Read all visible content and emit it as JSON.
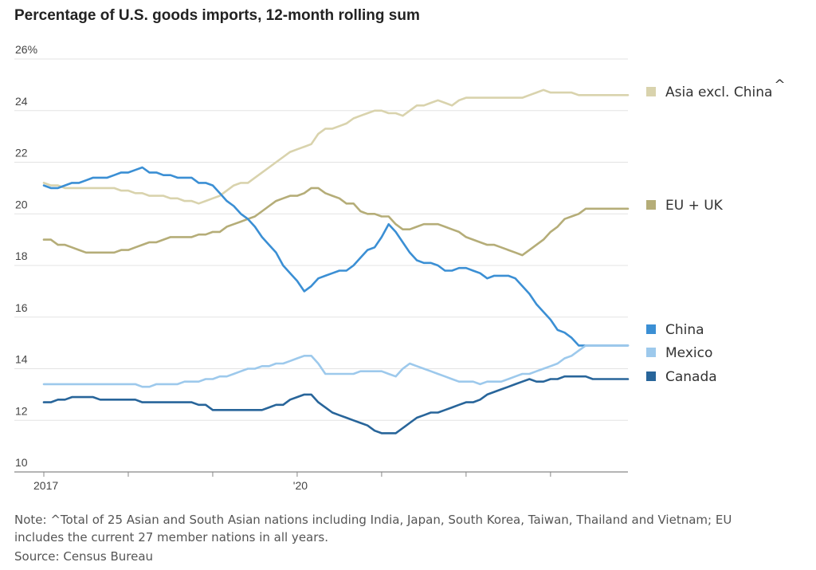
{
  "chart_data": {
    "type": "line",
    "title": "Percentage of U.S. goods imports, 12-month rolling sum",
    "y_ticks": [
      "26%",
      "24",
      "22",
      "20",
      "18",
      "16",
      "14",
      "12",
      "10"
    ],
    "x_tick_labels": [
      "2017",
      "'20"
    ],
    "ylim": [
      10,
      26
    ],
    "xlim": [
      "2017-01",
      "2023-12"
    ],
    "grid": true,
    "legend_position": "right",
    "x": [
      "2017-01",
      "2017-02",
      "2017-03",
      "2017-04",
      "2017-05",
      "2017-06",
      "2017-07",
      "2017-08",
      "2017-09",
      "2017-10",
      "2017-11",
      "2017-12",
      "2018-01",
      "2018-02",
      "2018-03",
      "2018-04",
      "2018-05",
      "2018-06",
      "2018-07",
      "2018-08",
      "2018-09",
      "2018-10",
      "2018-11",
      "2018-12",
      "2019-01",
      "2019-02",
      "2019-03",
      "2019-04",
      "2019-05",
      "2019-06",
      "2019-07",
      "2019-08",
      "2019-09",
      "2019-10",
      "2019-11",
      "2019-12",
      "2020-01",
      "2020-02",
      "2020-03",
      "2020-04",
      "2020-05",
      "2020-06",
      "2020-07",
      "2020-08",
      "2020-09",
      "2020-10",
      "2020-11",
      "2020-12",
      "2021-01",
      "2021-02",
      "2021-03",
      "2021-04",
      "2021-05",
      "2021-06",
      "2021-07",
      "2021-08",
      "2021-09",
      "2021-10",
      "2021-11",
      "2021-12",
      "2022-01",
      "2022-02",
      "2022-03",
      "2022-04",
      "2022-05",
      "2022-06",
      "2022-07",
      "2022-08",
      "2022-09",
      "2022-10",
      "2022-11",
      "2022-12",
      "2023-01",
      "2023-02",
      "2023-03",
      "2023-04",
      "2023-05",
      "2023-06",
      "2023-07",
      "2023-08",
      "2023-09",
      "2023-10",
      "2023-11",
      "2023-12"
    ],
    "series": [
      {
        "name": "Asia excl. China",
        "color": "#d9d3ad",
        "values": [
          21.2,
          21.1,
          21.1,
          21.0,
          21.0,
          21.0,
          21.0,
          21.0,
          21.0,
          21.0,
          21.0,
          20.9,
          20.9,
          20.8,
          20.8,
          20.7,
          20.7,
          20.7,
          20.6,
          20.6,
          20.5,
          20.5,
          20.4,
          20.5,
          20.6,
          20.7,
          20.9,
          21.1,
          21.2,
          21.2,
          21.4,
          21.6,
          21.8,
          22.0,
          22.2,
          22.4,
          22.5,
          22.6,
          22.7,
          23.1,
          23.3,
          23.3,
          23.4,
          23.5,
          23.7,
          23.8,
          23.9,
          24.0,
          24.0,
          23.9,
          23.9,
          23.8,
          24.0,
          24.2,
          24.2,
          24.3,
          24.4,
          24.3,
          24.2,
          24.4,
          24.5,
          24.5,
          24.5,
          24.5,
          24.5,
          24.5,
          24.5,
          24.5,
          24.5,
          24.6,
          24.7,
          24.8,
          24.7,
          24.7,
          24.7,
          24.7,
          24.6,
          24.6,
          24.6,
          24.6,
          24.6,
          24.6,
          24.6,
          24.6
        ]
      },
      {
        "name": "EU + UK",
        "color": "#b5ad78",
        "values": [
          19.0,
          19.0,
          18.8,
          18.8,
          18.7,
          18.6,
          18.5,
          18.5,
          18.5,
          18.5,
          18.5,
          18.6,
          18.6,
          18.7,
          18.8,
          18.9,
          18.9,
          19.0,
          19.1,
          19.1,
          19.1,
          19.1,
          19.2,
          19.2,
          19.3,
          19.3,
          19.5,
          19.6,
          19.7,
          19.8,
          19.9,
          20.1,
          20.3,
          20.5,
          20.6,
          20.7,
          20.7,
          20.8,
          21.0,
          21.0,
          20.8,
          20.7,
          20.6,
          20.4,
          20.4,
          20.1,
          20.0,
          20.0,
          19.9,
          19.9,
          19.6,
          19.4,
          19.4,
          19.5,
          19.6,
          19.6,
          19.6,
          19.5,
          19.4,
          19.3,
          19.1,
          19.0,
          18.9,
          18.8,
          18.8,
          18.7,
          18.6,
          18.5,
          18.4,
          18.6,
          18.8,
          19.0,
          19.3,
          19.5,
          19.8,
          19.9,
          20.0,
          20.2,
          20.2,
          20.2,
          20.2,
          20.2,
          20.2,
          20.2
        ]
      },
      {
        "name": "China",
        "color": "#3b8fd4",
        "values": [
          21.1,
          21.0,
          21.0,
          21.1,
          21.2,
          21.2,
          21.3,
          21.4,
          21.4,
          21.4,
          21.5,
          21.6,
          21.6,
          21.7,
          21.8,
          21.6,
          21.6,
          21.5,
          21.5,
          21.4,
          21.4,
          21.4,
          21.2,
          21.2,
          21.1,
          20.8,
          20.5,
          20.3,
          20.0,
          19.8,
          19.5,
          19.1,
          18.8,
          18.5,
          18.0,
          17.7,
          17.4,
          17.0,
          17.2,
          17.5,
          17.6,
          17.7,
          17.8,
          17.8,
          18.0,
          18.3,
          18.6,
          18.7,
          19.1,
          19.6,
          19.3,
          18.9,
          18.5,
          18.2,
          18.1,
          18.1,
          18.0,
          17.8,
          17.8,
          17.9,
          17.9,
          17.8,
          17.7,
          17.5,
          17.6,
          17.6,
          17.6,
          17.5,
          17.2,
          16.9,
          16.5,
          16.2,
          15.9,
          15.5,
          15.4,
          15.2,
          14.9,
          14.9,
          14.9,
          14.9,
          14.9,
          14.9,
          14.9,
          14.9
        ]
      },
      {
        "name": "Mexico",
        "color": "#9dc9ec",
        "values": [
          13.4,
          13.4,
          13.4,
          13.4,
          13.4,
          13.4,
          13.4,
          13.4,
          13.4,
          13.4,
          13.4,
          13.4,
          13.4,
          13.4,
          13.3,
          13.3,
          13.4,
          13.4,
          13.4,
          13.4,
          13.5,
          13.5,
          13.5,
          13.6,
          13.6,
          13.7,
          13.7,
          13.8,
          13.9,
          14.0,
          14.0,
          14.1,
          14.1,
          14.2,
          14.2,
          14.3,
          14.4,
          14.5,
          14.5,
          14.2,
          13.8,
          13.8,
          13.8,
          13.8,
          13.8,
          13.9,
          13.9,
          13.9,
          13.9,
          13.8,
          13.7,
          14.0,
          14.2,
          14.1,
          14.0,
          13.9,
          13.8,
          13.7,
          13.6,
          13.5,
          13.5,
          13.5,
          13.4,
          13.5,
          13.5,
          13.5,
          13.6,
          13.7,
          13.8,
          13.8,
          13.9,
          14.0,
          14.1,
          14.2,
          14.4,
          14.5,
          14.7,
          14.9,
          14.9,
          14.9,
          14.9,
          14.9,
          14.9,
          14.9
        ]
      },
      {
        "name": "Canada",
        "color": "#28659a",
        "values": [
          12.7,
          12.7,
          12.8,
          12.8,
          12.9,
          12.9,
          12.9,
          12.9,
          12.8,
          12.8,
          12.8,
          12.8,
          12.8,
          12.8,
          12.7,
          12.7,
          12.7,
          12.7,
          12.7,
          12.7,
          12.7,
          12.7,
          12.6,
          12.6,
          12.4,
          12.4,
          12.4,
          12.4,
          12.4,
          12.4,
          12.4,
          12.4,
          12.5,
          12.6,
          12.6,
          12.8,
          12.9,
          13.0,
          13.0,
          12.7,
          12.5,
          12.3,
          12.2,
          12.1,
          12.0,
          11.9,
          11.8,
          11.6,
          11.5,
          11.5,
          11.5,
          11.7,
          11.9,
          12.1,
          12.2,
          12.3,
          12.3,
          12.4,
          12.5,
          12.6,
          12.7,
          12.7,
          12.8,
          13.0,
          13.1,
          13.2,
          13.3,
          13.4,
          13.5,
          13.6,
          13.5,
          13.5,
          13.6,
          13.6,
          13.7,
          13.7,
          13.7,
          13.7,
          13.6,
          13.6,
          13.6,
          13.6,
          13.6,
          13.6
        ]
      }
    ]
  },
  "legend": [
    {
      "label": "Asia excl. China",
      "suffix": "^",
      "color": "#d9d3ad"
    },
    {
      "label": "EU + UK",
      "suffix": "",
      "color": "#b5ad78"
    },
    {
      "label": "China",
      "suffix": "",
      "color": "#3b8fd4"
    },
    {
      "label": "Mexico",
      "suffix": "",
      "color": "#9dc9ec"
    },
    {
      "label": "Canada",
      "suffix": "",
      "color": "#28659a"
    }
  ],
  "note": "Note: ^Total of 25 Asian and South Asian nations including India, Japan, South Korea, Taiwan, Thailand and Vietnam; EU includes the current 27 member nations in all years.",
  "source": "Source: Census Bureau"
}
